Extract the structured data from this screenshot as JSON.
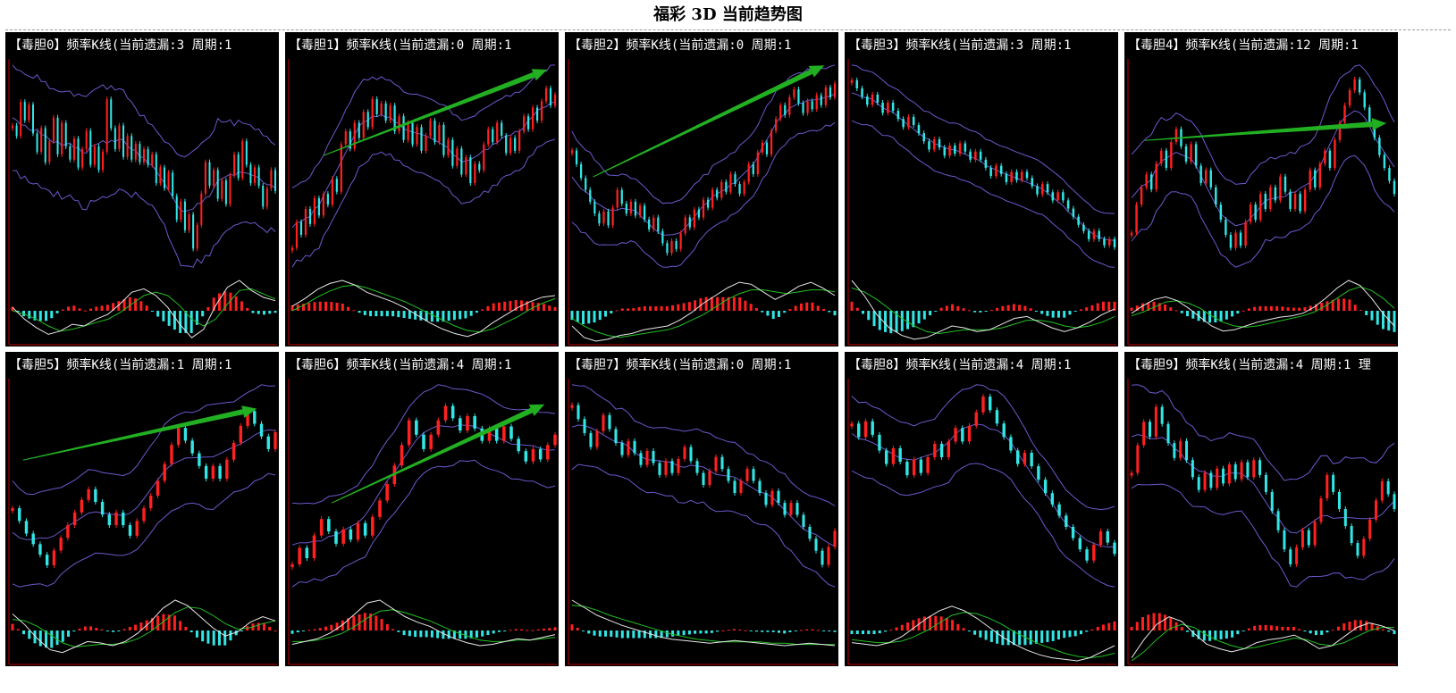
{
  "page": {
    "title": "福彩 3D 当前趋势图"
  },
  "colors": {
    "background": "#000000",
    "axis": "#c00000",
    "up": "#ff2020",
    "down": "#33e6e6",
    "band": "#6a5acd",
    "trend_arrow": "#22b022",
    "macd_dif": "#e8e8e8",
    "macd_dea": "#22c022"
  },
  "chart_data": [
    {
      "type": "candlestick",
      "id": "dudan0",
      "title": "【毒胆0】频率K线(当前遗漏:3 周期:1",
      "close": [
        5.2,
        4.8,
        6.1,
        5.4,
        6.0,
        4.9,
        4.2,
        5.1,
        3.8,
        4.6,
        5.5,
        4.1,
        5.3,
        4.4,
        3.9,
        4.7,
        3.6,
        4.3,
        5.0,
        3.7,
        4.4,
        3.5,
        4.2,
        6.2,
        5.1,
        4.3,
        5.2,
        4.0,
        4.8,
        3.9,
        4.5,
        3.8,
        4.3,
        3.7,
        4.1,
        3.0,
        3.6,
        2.8,
        3.4,
        2.5,
        1.6,
        2.3,
        1.2,
        1.8,
        0.5,
        1.4,
        2.6,
        3.8,
        2.9,
        3.5,
        2.4,
        3.1,
        2.2,
        3.3,
        4.1,
        3.2,
        4.6,
        3.7,
        3.0,
        3.6,
        2.9,
        2.1,
        2.8,
        3.5,
        2.7
      ],
      "trend": null,
      "macd": {
        "dif": [
          0.2,
          -0.5,
          -1.0,
          -1.4,
          -1.2,
          -0.8,
          -0.9,
          -0.5,
          -0.2,
          0.4,
          1.1,
          1.3,
          0.9,
          0.2,
          -0.8,
          -1.6,
          -1.1,
          0.3,
          1.4,
          1.8,
          1.2,
          0.8,
          0.6
        ],
        "dea": [
          0.0,
          -0.2,
          -0.5,
          -0.9,
          -1.2,
          -1.1,
          -0.9,
          -0.7,
          -0.5,
          -0.1,
          0.4,
          0.9,
          1.1,
          0.9,
          0.3,
          -0.5,
          -0.9,
          -0.5,
          0.4,
          1.2,
          1.3,
          1.0,
          0.7
        ]
      }
    },
    {
      "type": "candlestick",
      "id": "dudan1",
      "title": "【毒胆1】频率K线(当前遗漏:0 周期:1",
      "close": [
        2.0,
        3.2,
        2.6,
        3.8,
        3.1,
        4.3,
        3.5,
        4.5,
        4.0,
        5.2,
        4.6,
        6.8,
        7.4,
        6.6,
        7.8,
        7.1,
        8.3,
        7.6,
        8.9,
        8.2,
        8.7,
        7.9,
        8.6,
        7.4,
        8.1,
        7.0,
        7.8,
        6.8,
        7.6,
        6.5,
        7.2,
        7.9,
        6.9,
        7.7,
        6.3,
        7.0,
        5.8,
        6.6,
        5.4,
        6.2,
        5.0,
        5.9,
        5.6,
        6.8,
        7.5,
        6.9,
        7.8,
        7.2,
        6.4,
        7.1,
        6.5,
        7.4,
        8.1,
        7.5,
        8.5,
        7.9,
        8.8,
        9.4,
        8.6,
        9.1
      ],
      "trend": [
        [
          0.12,
          0.55
        ],
        [
          0.97,
          0.95
        ]
      ],
      "macd": {
        "dif": [
          0.3,
          0.8,
          1.4,
          1.8,
          2.0,
          1.7,
          1.2,
          0.9,
          0.6,
          0.2,
          -0.3,
          -0.8,
          -1.2,
          -1.5,
          -1.7,
          -1.4,
          -0.8,
          -0.3,
          0.2,
          0.6,
          0.9,
          1.0
        ],
        "dea": [
          0.0,
          0.4,
          0.9,
          1.3,
          1.6,
          1.7,
          1.5,
          1.2,
          0.9,
          0.6,
          0.2,
          -0.2,
          -0.6,
          -1.0,
          -1.3,
          -1.4,
          -1.2,
          -0.8,
          -0.4,
          0.1,
          0.5,
          0.8
        ]
      }
    },
    {
      "type": "candlestick",
      "id": "dudan2",
      "title": "【毒胆2】频率K线(当前遗漏:0 周期:1",
      "close": [
        6.2,
        5.5,
        4.8,
        4.2,
        3.6,
        3.0,
        2.5,
        3.1,
        2.4,
        3.3,
        4.2,
        3.5,
        3.0,
        3.6,
        2.9,
        3.4,
        2.7,
        2.2,
        2.8,
        2.1,
        1.5,
        1.0,
        1.6,
        1.2,
        2.0,
        2.8,
        2.3,
        3.2,
        2.8,
        3.7,
        3.3,
        4.2,
        3.8,
        4.6,
        4.1,
        5.0,
        4.5,
        4.0,
        4.6,
        5.5,
        5.0,
        6.1,
        6.6,
        6.0,
        7.2,
        7.8,
        8.5,
        8.0,
        8.9,
        9.3,
        8.6,
        8.1,
        8.7,
        8.3,
        9.0,
        8.5,
        9.4,
        8.9,
        9.6
      ],
      "trend": [
        [
          0.08,
          0.45
        ],
        [
          0.96,
          0.97
        ]
      ],
      "macd": {
        "dif": [
          -0.8,
          -1.4,
          -1.6,
          -1.5,
          -1.3,
          -1.2,
          -1.0,
          -0.9,
          -0.8,
          -0.5,
          -0.1,
          0.4,
          0.8,
          1.2,
          1.5,
          1.4,
          1.0,
          0.6,
          0.9,
          1.3,
          1.5,
          1.2,
          0.8
        ],
        "dea": [
          -0.4,
          -0.8,
          -1.1,
          -1.3,
          -1.4,
          -1.3,
          -1.2,
          -1.1,
          -1.0,
          -0.8,
          -0.5,
          -0.2,
          0.2,
          0.6,
          0.9,
          1.1,
          1.1,
          1.0,
          0.9,
          1.0,
          1.1,
          1.1,
          1.0
        ]
      }
    },
    {
      "type": "candlestick",
      "id": "dudan3",
      "title": "【毒胆3】频率K线(当前遗漏:3 周期:1",
      "close": [
        9.4,
        9.0,
        8.6,
        8.2,
        8.7,
        8.3,
        7.8,
        8.3,
        7.9,
        7.5,
        7.1,
        7.6,
        7.2,
        6.8,
        6.4,
        6.0,
        6.5,
        6.1,
        5.7,
        6.2,
        5.8,
        6.3,
        5.9,
        5.5,
        5.9,
        5.5,
        5.1,
        4.7,
        5.2,
        4.8,
        4.4,
        4.9,
        4.5,
        4.9,
        4.6,
        4.2,
        3.8,
        4.3,
        3.9,
        3.5,
        3.9,
        3.5,
        3.1,
        2.7,
        2.3,
        2.0,
        1.6,
        2.0,
        1.6,
        1.3,
        1.6,
        1.2
      ],
      "trend": null,
      "macd": {
        "dif": [
          1.6,
          0.8,
          -0.2,
          -0.9,
          -1.3,
          -1.5,
          -1.4,
          -1.1,
          -0.8,
          -0.9,
          -1.1,
          -1.0,
          -0.7,
          -0.4,
          -0.3,
          -0.6,
          -0.9,
          -1.1,
          -0.9,
          -0.6,
          -0.2,
          0.1
        ],
        "dea": [
          1.2,
          1.0,
          0.6,
          0.1,
          -0.4,
          -0.8,
          -1.1,
          -1.2,
          -1.1,
          -1.0,
          -1.0,
          -1.0,
          -0.9,
          -0.7,
          -0.5,
          -0.5,
          -0.6,
          -0.8,
          -0.9,
          -0.8,
          -0.6,
          -0.3
        ]
      }
    },
    {
      "type": "candlestick",
      "id": "dudan4",
      "title": "【毒胆4】频率K线(当前遗漏:12 周期:1",
      "close": [
        2.5,
        3.8,
        4.6,
        5.2,
        4.5,
        5.7,
        6.3,
        5.5,
        6.7,
        7.3,
        6.5,
        5.8,
        6.6,
        5.6,
        4.8,
        5.4,
        4.6,
        3.8,
        3.1,
        2.4,
        1.8,
        2.5,
        1.9,
        3.0,
        3.8,
        3.1,
        4.3,
        3.6,
        4.6,
        4.0,
        5.1,
        4.4,
        3.6,
        4.3,
        3.5,
        4.5,
        5.4,
        4.6,
        5.7,
        6.3,
        5.5,
        6.8,
        7.6,
        8.4,
        9.1,
        9.6,
        9.0,
        8.3,
        7.6,
        6.9,
        6.1,
        5.5,
        4.9,
        4.3
      ],
      "trend": [
        [
          0.05,
          0.62
        ],
        [
          0.97,
          0.7
        ]
      ],
      "macd": {
        "dif": [
          -0.2,
          0.4,
          0.9,
          1.1,
          0.8,
          0.2,
          -0.5,
          -1.2,
          -1.6,
          -1.5,
          -1.2,
          -0.9,
          -0.7,
          -0.5,
          -0.4,
          -0.2,
          0.3,
          1.0,
          1.8,
          2.4,
          2.0,
          1.0,
          -0.2,
          -1.2
        ],
        "dea": [
          -0.4,
          -0.1,
          0.3,
          0.7,
          0.8,
          0.6,
          0.2,
          -0.4,
          -0.9,
          -1.2,
          -1.3,
          -1.2,
          -1.0,
          -0.8,
          -0.6,
          -0.4,
          -0.1,
          0.4,
          1.0,
          1.6,
          1.9,
          1.6,
          1.0,
          0.2
        ]
      }
    },
    {
      "type": "candlestick",
      "id": "dudan5",
      "title": "【毒胆5】频率K线(当前遗漏:1 周期:1",
      "close": [
        4.2,
        3.6,
        3.0,
        2.5,
        2.0,
        1.5,
        2.2,
        2.8,
        3.4,
        4.0,
        4.6,
        5.1,
        4.5,
        3.9,
        3.4,
        4.0,
        3.4,
        2.9,
        3.6,
        4.2,
        4.8,
        5.5,
        6.3,
        7.2,
        8.0,
        7.4,
        6.8,
        6.2,
        5.6,
        6.2,
        5.6,
        6.5,
        7.3,
        8.1,
        8.8,
        8.2,
        7.6,
        7.0,
        7.8
      ],
      "trend": [
        [
          0.04,
          0.62
        ],
        [
          0.93,
          0.86
        ]
      ],
      "macd": {
        "dif": [
          1.2,
          0.4,
          -0.6,
          -1.4,
          -1.6,
          -1.2,
          -0.8,
          -0.9,
          -1.1,
          -0.8,
          -0.2,
          0.6,
          1.6,
          2.2,
          1.8,
          1.0,
          0.2,
          -0.4,
          -0.1,
          0.6,
          1.0,
          0.7
        ],
        "dea": [
          0.8,
          0.7,
          0.3,
          -0.3,
          -0.9,
          -1.2,
          -1.1,
          -1.0,
          -1.0,
          -0.9,
          -0.6,
          -0.1,
          0.6,
          1.3,
          1.7,
          1.6,
          1.1,
          0.5,
          0.1,
          0.2,
          0.5,
          0.7
        ]
      }
    },
    {
      "type": "candlestick",
      "id": "dudan6",
      "title": "【毒胆6】频率K线(当前遗漏:4 周期:1",
      "close": [
        1.2,
        2.0,
        1.5,
        2.6,
        3.4,
        2.8,
        2.2,
        2.9,
        2.4,
        3.2,
        2.6,
        3.5,
        4.3,
        5.1,
        6.0,
        7.0,
        8.2,
        7.5,
        6.8,
        7.5,
        8.2,
        8.9,
        8.3,
        7.7,
        8.4,
        7.8,
        7.2,
        7.8,
        7.2,
        7.9,
        7.3,
        6.7,
        6.2,
        6.8,
        6.3,
        7.0,
        7.5
      ],
      "trend": [
        [
          0.15,
          0.42
        ],
        [
          0.96,
          0.88
        ]
      ],
      "macd": {
        "dif": [
          -1.0,
          -0.8,
          -0.6,
          -0.2,
          0.4,
          1.2,
          2.0,
          2.2,
          1.6,
          1.0,
          0.6,
          0.3,
          -0.2,
          -0.6,
          -0.9,
          -1.1,
          -1.0,
          -0.8,
          -0.6,
          -0.7,
          -0.5,
          -0.3
        ],
        "dea": [
          -0.8,
          -0.8,
          -0.7,
          -0.5,
          -0.2,
          0.3,
          0.9,
          1.4,
          1.5,
          1.3,
          1.0,
          0.7,
          0.3,
          -0.1,
          -0.4,
          -0.7,
          -0.8,
          -0.8,
          -0.7,
          -0.7,
          -0.6,
          -0.5
        ]
      }
    },
    {
      "type": "candlestick",
      "id": "dudan7",
      "title": "【毒胆7】频率K线(当前遗漏:0 周期:1",
      "close": [
        9.3,
        8.6,
        7.9,
        7.2,
        8.0,
        8.8,
        8.1,
        7.4,
        6.8,
        7.5,
        6.9,
        6.3,
        7.0,
        6.4,
        5.8,
        6.5,
        5.9,
        6.6,
        7.2,
        6.5,
        5.9,
        5.3,
        6.0,
        6.7,
        6.1,
        5.5,
        4.9,
        5.5,
        6.1,
        5.5,
        4.9,
        4.3,
        5.0,
        4.4,
        3.8,
        4.4,
        3.8,
        3.2,
        2.6,
        2.0,
        1.3,
        2.2,
        3.0
      ],
      "trend": null,
      "macd": {
        "dif": [
          2.4,
          1.8,
          1.2,
          0.8,
          0.4,
          0.1,
          -0.2,
          -0.5,
          -0.7,
          -0.8,
          -0.9,
          -1.0,
          -0.9,
          -0.8,
          -0.9,
          -1.0,
          -1.1,
          -1.2,
          -1.1,
          -1.0,
          -1.1,
          -1.2
        ],
        "dea": [
          2.0,
          1.9,
          1.6,
          1.2,
          0.9,
          0.6,
          0.3,
          0.0,
          -0.3,
          -0.5,
          -0.7,
          -0.8,
          -0.9,
          -0.9,
          -0.9,
          -0.9,
          -1.0,
          -1.0,
          -1.1,
          -1.1,
          -1.1,
          -1.1
        ]
      }
    },
    {
      "type": "candlestick",
      "id": "dudan8",
      "title": "【毒胆8】频率K线(当前遗漏:4 周期:1",
      "close": [
        7.0,
        6.4,
        7.1,
        6.5,
        5.8,
        5.2,
        5.9,
        5.3,
        4.7,
        5.4,
        4.8,
        5.5,
        6.1,
        5.5,
        6.2,
        6.8,
        6.2,
        6.9,
        7.5,
        8.2,
        7.6,
        7.0,
        6.4,
        5.8,
        5.2,
        5.7,
        5.1,
        4.5,
        3.9,
        3.4,
        2.9,
        2.4,
        1.9,
        1.4,
        0.9,
        1.6,
        2.2,
        1.7,
        1.2
      ],
      "trend": null,
      "macd": {
        "dif": [
          -0.8,
          -0.9,
          -1.0,
          -0.8,
          -0.4,
          0.2,
          0.8,
          1.3,
          1.6,
          1.3,
          0.8,
          0.2,
          -0.4,
          -0.9,
          -1.3,
          -1.6,
          -1.8,
          -1.9,
          -2.0,
          -1.8,
          -1.4,
          -1.0
        ],
        "dea": [
          -0.6,
          -0.7,
          -0.8,
          -0.8,
          -0.7,
          -0.4,
          0.0,
          0.5,
          1.0,
          1.2,
          1.1,
          0.8,
          0.4,
          -0.1,
          -0.5,
          -0.9,
          -1.2,
          -1.5,
          -1.7,
          -1.8,
          -1.7,
          -1.5
        ]
      }
    },
    {
      "type": "candlestick",
      "id": "dudan9",
      "title": "【毒胆9】频率K线(当前遗漏:4 周期:1 理",
      "close": [
        5.5,
        6.8,
        7.9,
        7.2,
        8.6,
        7.8,
        6.9,
        6.2,
        7.0,
        6.1,
        5.3,
        4.7,
        5.5,
        4.8,
        5.7,
        5.0,
        5.9,
        5.2,
        6.0,
        5.3,
        6.1,
        5.4,
        4.6,
        3.7,
        2.8,
        1.9,
        1.2,
        2.0,
        2.8,
        2.1,
        3.2,
        4.3,
        5.4,
        4.6,
        3.8,
        3.0,
        2.2,
        1.6,
        2.4,
        3.3,
        4.2,
        5.1,
        4.5,
        3.8
      ],
      "trend": null,
      "macd": {
        "dif": [
          -1.8,
          -0.6,
          0.4,
          0.9,
          0.6,
          -0.2,
          -0.9,
          -1.2,
          -1.4,
          -1.2,
          -0.8,
          -0.6,
          -0.5,
          -0.3,
          -0.7,
          -1.2,
          -1.0,
          -0.4,
          0.2,
          0.5,
          0.3,
          0.0
        ],
        "dea": [
          -2.0,
          -1.4,
          -0.6,
          0.1,
          0.4,
          0.2,
          -0.3,
          -0.7,
          -1.0,
          -1.2,
          -1.1,
          -0.9,
          -0.7,
          -0.5,
          -0.6,
          -0.9,
          -1.0,
          -0.8,
          -0.4,
          0.0,
          0.2,
          0.2
        ]
      }
    }
  ]
}
